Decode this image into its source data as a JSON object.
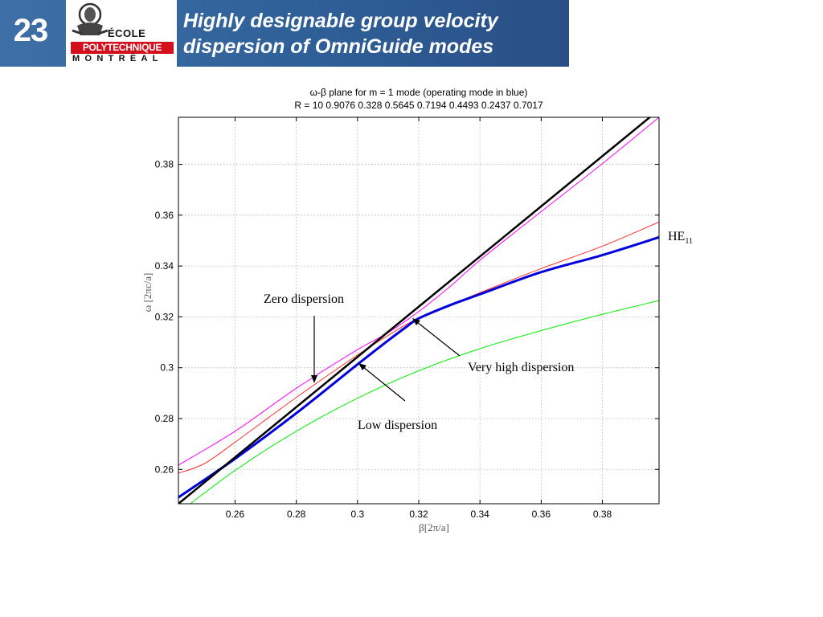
{
  "slide": {
    "number": "23",
    "title_lines": [
      "Highly designable group velocity",
      "dispersion of OmniGuide modes"
    ],
    "logo": {
      "ecole": "ÉCOLE",
      "poly": "POLYTECHNIQUE",
      "montreal": "MONTRÉAL"
    }
  },
  "chart_data": {
    "type": "line",
    "title": "ω-β plane for m = 1 mode (operating mode in blue)",
    "subtitle": "R = 10 0.9076 0.328 0.5645 0.7194 0.4493 0.2437 0.7017",
    "xlabel": "β[2π/a]",
    "ylabel": "ω [2πc/a]",
    "xlim": [
      0.2415,
      0.3985
    ],
    "ylim": [
      0.2465,
      0.3985
    ],
    "xticks": [
      "0.26",
      "0.28",
      "0.3",
      "0.32",
      "0.34",
      "0.36",
      "0.38"
    ],
    "yticks": [
      "0.26",
      "0.28",
      "0.3",
      "0.32",
      "0.34",
      "0.36",
      "0.38"
    ],
    "grid": true,
    "series": [
      {
        "color": "#ff00ff",
        "width": 1,
        "x": [
          0.2415,
          0.26,
          0.28,
          0.3,
          0.31,
          0.32,
          0.33,
          0.34,
          0.36,
          0.38,
          0.3985
        ],
        "y": [
          0.2617,
          0.275,
          0.2919,
          0.3071,
          0.3138,
          0.3221,
          0.3317,
          0.3423,
          0.3614,
          0.3803,
          0.3985
        ]
      },
      {
        "color": "#ff3030",
        "width": 1,
        "x": [
          0.2415,
          0.25,
          0.26,
          0.28,
          0.3,
          0.31,
          0.32,
          0.34,
          0.36,
          0.38,
          0.3985
        ],
        "y": [
          0.2585,
          0.2623,
          0.2707,
          0.2883,
          0.305,
          0.3127,
          0.3195,
          0.3295,
          0.339,
          0.3478,
          0.3573
        ]
      },
      {
        "color": "#00ee00",
        "width": 1,
        "x": [
          0.2415,
          0.26,
          0.28,
          0.3,
          0.32,
          0.34,
          0.36,
          0.38,
          0.3985
        ],
        "y": [
          0.2429,
          0.2596,
          0.275,
          0.288,
          0.2988,
          0.3075,
          0.3146,
          0.321,
          0.3264
        ]
      },
      {
        "color": "#0000dd",
        "width": 3,
        "x": [
          0.2415,
          0.26,
          0.28,
          0.3,
          0.31,
          0.316,
          0.32,
          0.33,
          0.34,
          0.36,
          0.38,
          0.3985
        ],
        "y": [
          0.249,
          0.2642,
          0.2821,
          0.3013,
          0.3107,
          0.3161,
          0.3194,
          0.3245,
          0.3289,
          0.3376,
          0.3443,
          0.3513
        ]
      },
      {
        "color": "#000000",
        "width": 2.5,
        "x": [
          0.2415,
          0.3985
        ],
        "y": [
          0.2465,
          0.4015
        ]
      }
    ],
    "annotations": [
      {
        "text": "Zero dispersion",
        "point": [
          0.2855,
          0.2888
        ]
      },
      {
        "text": "Very high dispersion",
        "point": [
          0.3171,
          0.3178
        ]
      },
      {
        "text": "Low dispersion",
        "point": [
          0.3,
          0.2981
        ]
      }
    ],
    "series_label": {
      "text": "HE",
      "sub": "11"
    }
  }
}
